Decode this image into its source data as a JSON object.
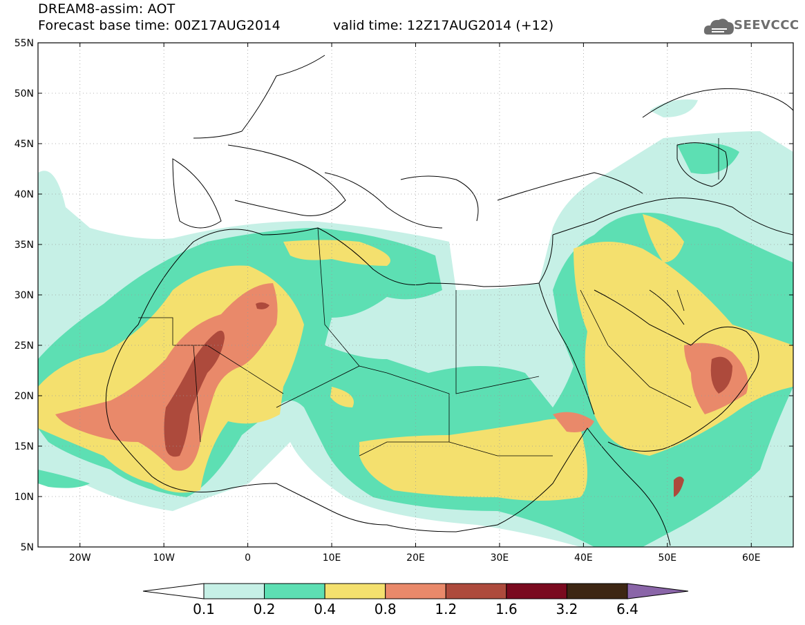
{
  "header": {
    "line1": "DREAM8-assim: AOT",
    "line2": "Forecast base time: 00Z17AUG2014",
    "valid": "valid time: 12Z17AUG2014 (+12)",
    "logo_text": "SEEVCCC"
  },
  "map": {
    "lat_labels": [
      "55N",
      "50N",
      "45N",
      "40N",
      "35N",
      "30N",
      "25N",
      "20N",
      "15N",
      "10N",
      "5N"
    ],
    "lon_labels": [
      "20W",
      "10W",
      "0",
      "10E",
      "20E",
      "30E",
      "40E",
      "50E",
      "60E"
    ],
    "lon_range": [
      -25,
      65
    ],
    "lat_range": [
      5,
      55
    ],
    "field": "AOT"
  },
  "colorbar": {
    "levels": [
      "0.1",
      "0.2",
      "0.4",
      "0.8",
      "1.2",
      "1.6",
      "3.2",
      "6.4"
    ],
    "colors": [
      "#ffffff",
      "#c6f0e6",
      "#5ddfb3",
      "#f4e06e",
      "#e9896a",
      "#ad4a3c",
      "#7a0a1f",
      "#3d2613",
      "#8a65a8"
    ]
  }
}
